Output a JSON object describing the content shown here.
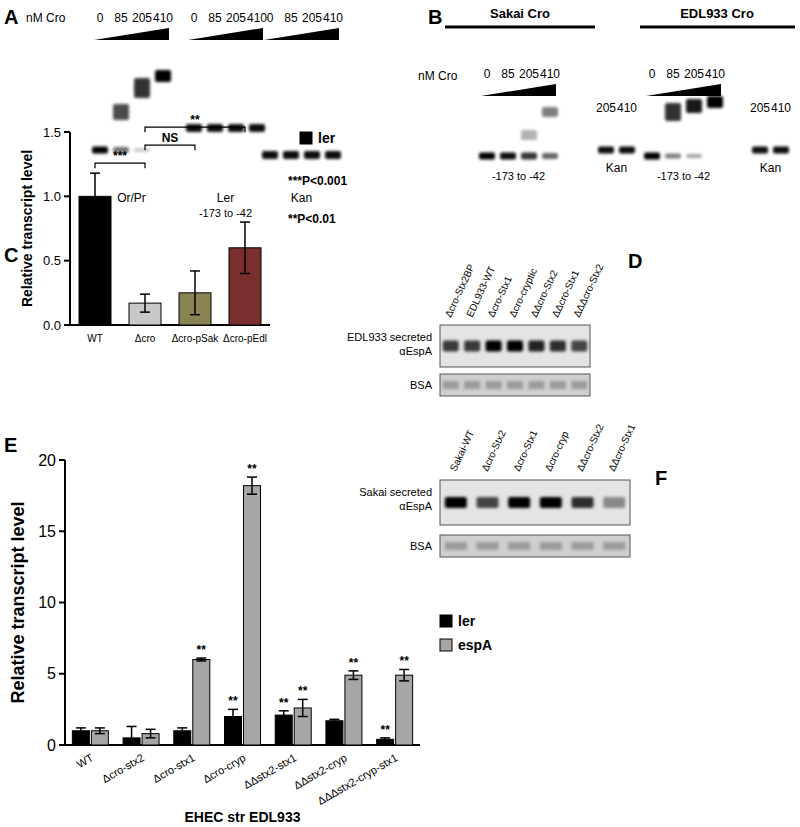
{
  "panels": {
    "A": {
      "label": "A",
      "concentration_label": "nM Cro",
      "lanes": [
        "0",
        "85",
        "205",
        "410"
      ],
      "probes": [
        {
          "name": "Or/Pr"
        },
        {
          "name": "Ler",
          "range": "-173 to -42"
        },
        {
          "name": "Kan"
        }
      ]
    },
    "B": {
      "label": "B",
      "concentration_label": "nM Cro",
      "groups": [
        {
          "title": "Sakai Cro",
          "lanes": [
            "0",
            "85",
            "205",
            "410"
          ],
          "probe": "-173 to -42",
          "control": "Kan",
          "control_lanes": [
            "205",
            "410"
          ]
        },
        {
          "title": "EDL933 Cro",
          "lanes": [
            "0",
            "85",
            "205",
            "410"
          ],
          "probe": "-173 to -42",
          "control": "Kan",
          "control_lanes": [
            "205",
            "410"
          ]
        }
      ]
    },
    "D": {
      "label": "D",
      "blot_label": "EDL933 secreted αEspA",
      "loading_label": "BSA",
      "lanes": [
        "Δcro-Stx2BP",
        "EDL933-WT",
        "Δcro-Stx1",
        "Δcro-cryptic",
        "ΔΔcro-Stx2",
        "ΔΔcro-Stx1",
        "ΔΔΔcro-Stx2"
      ]
    },
    "F": {
      "label": "F",
      "blot_label": "Sakai secreted αEspA",
      "loading_label": "BSA",
      "lanes": [
        "Sakai-WT",
        "Δcro-Stx2",
        "Δcro-Stx1",
        "Δcro-cryp",
        "ΔΔcro-Stx2",
        "ΔΔcro-Stx1"
      ]
    }
  },
  "chart_data": [
    {
      "panel": "C",
      "type": "bar",
      "y_label": "Relative transcript level",
      "categories": [
        "WT",
        "Δcro",
        "Δcro-pSak",
        "Δcro-pEdl"
      ],
      "series": [
        {
          "name": "ler",
          "color": "#000000",
          "colors": [
            "#000000",
            "#c8c8c8",
            "#8a8455",
            "#7a2e2e"
          ],
          "values": [
            1.0,
            0.17,
            0.25,
            0.6
          ],
          "errors": [
            0.18,
            0.07,
            0.17,
            0.2
          ]
        }
      ],
      "ylim": [
        0,
        1.5
      ],
      "yticks": [
        {
          "value": 0,
          "label": "0.0"
        },
        {
          "value": 0.5,
          "label": "0.5"
        },
        {
          "value": 1,
          "label": "1.0"
        },
        {
          "value": 1.5,
          "label": "1.5"
        }
      ],
      "legend": "top-right",
      "annotations": [
        {
          "text": "***",
          "between": [
            "WT",
            "Δcro"
          ]
        },
        {
          "text": "NS",
          "between": [
            "Δcro",
            "Δcro-pSak"
          ]
        },
        {
          "text": "**",
          "between": [
            "Δcro",
            "Δcro-pEdl"
          ]
        }
      ],
      "notes": [
        "***P<0.001",
        "**P<0.01"
      ]
    },
    {
      "panel": "E",
      "type": "bar",
      "y_label": "Relative transcript level",
      "x_label": "EHEC str EDL933",
      "categories": [
        "WT",
        "Δcro-stx2",
        "Δcro-stx1",
        "Δcro-cryp",
        "ΔΔstx2-stx1",
        "ΔΔstx2-cryp",
        "ΔΔΔstx2-cryp-stx1"
      ],
      "series": [
        {
          "name": "ler",
          "color": "#000000",
          "values": [
            1,
            0.5,
            1,
            2,
            2.1,
            1.7,
            0.4
          ],
          "errors": [
            0.2,
            0.8,
            0.2,
            0.5,
            0.3,
            0.1,
            0.1
          ],
          "significance": [
            null,
            null,
            null,
            "**",
            "**",
            null,
            "**"
          ]
        },
        {
          "name": "espA",
          "color": "#a6a6a6",
          "values": [
            1,
            0.8,
            6,
            18.2,
            2.6,
            4.9,
            4.9
          ],
          "errors": [
            0.2,
            0.3,
            0.1,
            0.6,
            0.6,
            0.3,
            0.4
          ],
          "significance": [
            null,
            null,
            "**",
            "**",
            "**",
            "**",
            "**"
          ]
        }
      ],
      "ylim": [
        0,
        20
      ],
      "yticks": [
        0,
        5,
        10,
        15,
        20
      ],
      "legend": "right"
    }
  ]
}
